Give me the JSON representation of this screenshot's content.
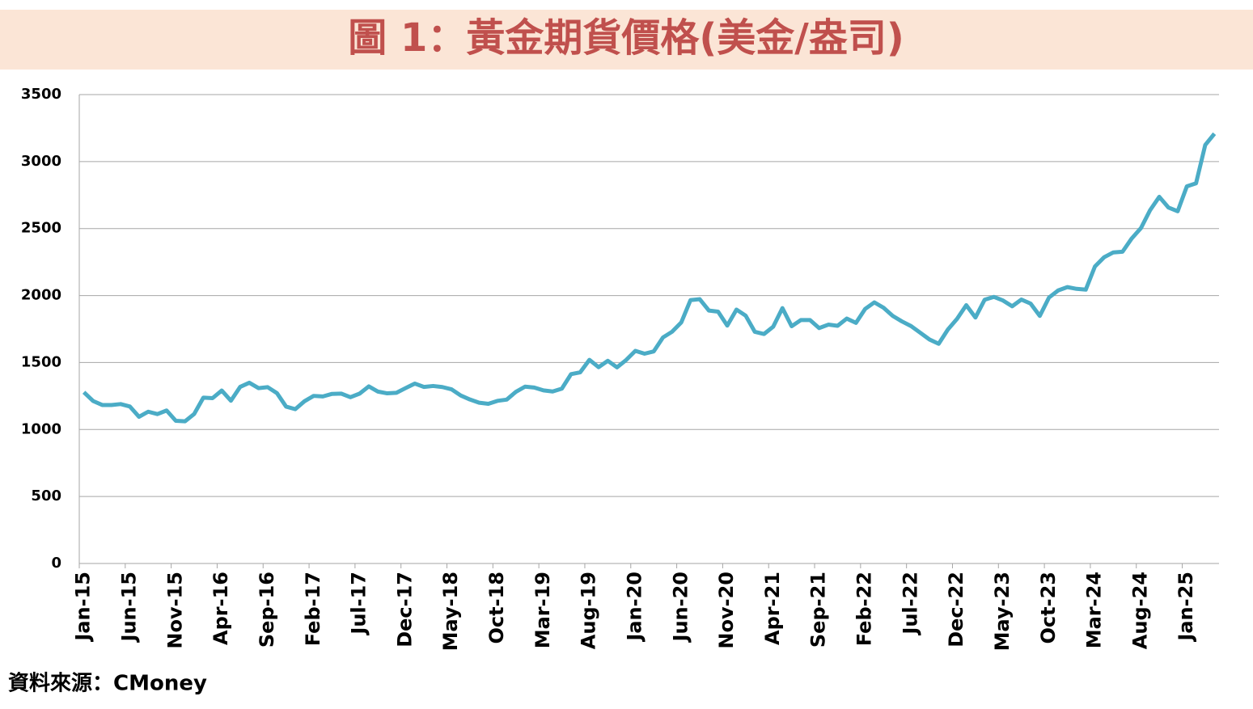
{
  "chart_data": {
    "type": "line",
    "title": "圖 1：黃金期貨價格(美金/盎司)",
    "source": "資料來源：CMoney",
    "categories": [
      "Jan-15",
      null,
      null,
      null,
      null,
      "Jun-15",
      null,
      null,
      null,
      null,
      "Nov-15",
      null,
      null,
      null,
      null,
      "Apr-16",
      null,
      null,
      null,
      null,
      "Sep-16",
      null,
      null,
      null,
      null,
      "Feb-17",
      null,
      null,
      null,
      null,
      "Jul-17",
      null,
      null,
      null,
      null,
      "Dec-17",
      null,
      null,
      null,
      null,
      "May-18",
      null,
      null,
      null,
      null,
      "Oct-18",
      null,
      null,
      null,
      null,
      "Mar-19",
      null,
      null,
      null,
      null,
      "Aug-19",
      null,
      null,
      null,
      null,
      "Jan-20",
      null,
      null,
      null,
      null,
      "Jun-20",
      null,
      null,
      null,
      null,
      "Nov-20",
      null,
      null,
      null,
      null,
      "Apr-21",
      null,
      null,
      null,
      null,
      "Sep-21",
      null,
      null,
      null,
      null,
      "Feb-22",
      null,
      null,
      null,
      null,
      "Jul-22",
      null,
      null,
      null,
      null,
      "Dec-22",
      null,
      null,
      null,
      null,
      "May-23",
      null,
      null,
      null,
      null,
      "Oct-23",
      null,
      null,
      null,
      null,
      "Mar-24",
      null,
      null,
      null,
      null,
      "Aug-24",
      null,
      null,
      null,
      null,
      "Jan-25",
      null,
      null,
      null
    ],
    "series": [
      {
        "color": "#4bacc6",
        "values": [
          1278,
          1213,
          1183,
          1183,
          1190,
          1172,
          1095,
          1133,
          1115,
          1142,
          1065,
          1061,
          1116,
          1238,
          1234,
          1291,
          1215,
          1318,
          1349,
          1309,
          1316,
          1272,
          1171,
          1152,
          1211,
          1251,
          1247,
          1266,
          1268,
          1241,
          1268,
          1322,
          1283,
          1270,
          1274,
          1309,
          1343,
          1318,
          1325,
          1317,
          1300,
          1254,
          1224,
          1200,
          1192,
          1214,
          1223,
          1281,
          1320,
          1313,
          1292,
          1284,
          1305,
          1413,
          1427,
          1520,
          1465,
          1513,
          1464,
          1519,
          1587,
          1566,
          1583,
          1687,
          1730,
          1800,
          1966,
          1973,
          1888,
          1880,
          1776,
          1895,
          1850,
          1729,
          1713,
          1768,
          1906,
          1771,
          1817,
          1817,
          1757,
          1783,
          1774,
          1828,
          1796,
          1900,
          1949,
          1909,
          1848,
          1807,
          1772,
          1722,
          1672,
          1640,
          1746,
          1826,
          1928,
          1836,
          1969,
          1990,
          1963,
          1920,
          1970,
          1940,
          1848,
          1985,
          2038,
          2063,
          2050,
          2044,
          2217,
          2286,
          2322,
          2327,
          2426,
          2503,
          2637,
          2737,
          2657,
          2629,
          2815,
          2838,
          3124,
          3208
        ]
      }
    ],
    "ylim": [
      0,
      3500
    ],
    "yticks": [
      0,
      500,
      1000,
      1500,
      2000,
      2500,
      3000,
      3500
    ],
    "grid": true
  }
}
